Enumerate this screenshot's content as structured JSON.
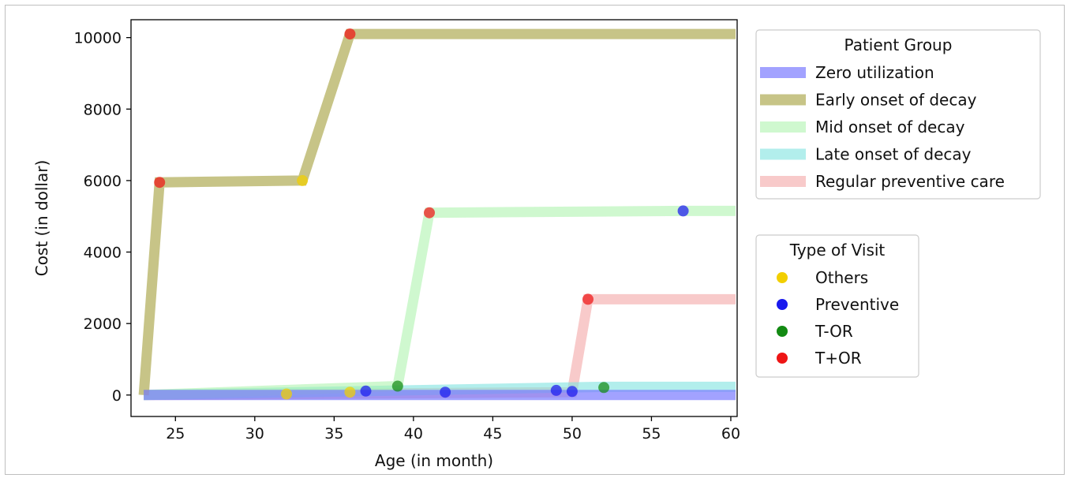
{
  "chart_data": {
    "type": "line",
    "xlabel": "Age (in month)",
    "ylabel": "Cost (in dollar)",
    "xlim": [
      22.2,
      60.4
    ],
    "ylim": [
      -600,
      10500
    ],
    "xticks": [
      25,
      30,
      35,
      40,
      45,
      50,
      55,
      60
    ],
    "yticks": [
      0,
      2000,
      4000,
      6000,
      8000,
      10000
    ],
    "grid": false,
    "series": [
      {
        "name": "Zero utilization",
        "color": "#7b7bff",
        "opacity": 0.7,
        "x": [
          23,
          60.3
        ],
        "y": [
          0,
          0
        ]
      },
      {
        "name": "Early onset of decay",
        "color": "#b9b569",
        "opacity": 0.8,
        "x": [
          23,
          24,
          33,
          36,
          60.3
        ],
        "y": [
          0,
          5950,
          6000,
          10100,
          10100
        ]
      },
      {
        "name": "Mid onset of decay",
        "color": "#a8f2a8",
        "opacity": 0.55,
        "x": [
          23,
          39,
          41,
          57,
          60.3
        ],
        "y": [
          0,
          250,
          5100,
          5150,
          5150
        ]
      },
      {
        "name": "Late onset of decay",
        "color": "#7fe3df",
        "opacity": 0.6,
        "x": [
          23,
          52,
          60.3
        ],
        "y": [
          0,
          230,
          230
        ]
      },
      {
        "name": "Regular preventive care",
        "color": "#f4a6a6",
        "opacity": 0.6,
        "x": [
          23,
          50,
          51,
          60.3
        ],
        "y": [
          0,
          80,
          2680,
          2680
        ]
      }
    ],
    "visits": [
      {
        "x": 24,
        "y": 5950,
        "type": "T+OR"
      },
      {
        "x": 33,
        "y": 6000,
        "type": "Others"
      },
      {
        "x": 36,
        "y": 10100,
        "type": "T+OR"
      },
      {
        "x": 41,
        "y": 5100,
        "type": "T+OR"
      },
      {
        "x": 57,
        "y": 5150,
        "type": "Preventive"
      },
      {
        "x": 51,
        "y": 2680,
        "type": "T+OR"
      },
      {
        "x": 32,
        "y": 30,
        "type": "Others"
      },
      {
        "x": 36,
        "y": 80,
        "type": "Others"
      },
      {
        "x": 37,
        "y": 110,
        "type": "Preventive"
      },
      {
        "x": 39,
        "y": 250,
        "type": "T-OR"
      },
      {
        "x": 42,
        "y": 80,
        "type": "Preventive"
      },
      {
        "x": 49,
        "y": 130,
        "type": "Preventive"
      },
      {
        "x": 50,
        "y": 100,
        "type": "Preventive"
      },
      {
        "x": 52,
        "y": 210,
        "type": "T-OR"
      }
    ],
    "legend_patient_group": {
      "title": "Patient Group",
      "position": "upper-right",
      "entries": [
        "Zero utilization",
        "Early onset of decay",
        "Mid onset of decay",
        "Late onset of decay",
        "Regular preventive care"
      ]
    },
    "legend_visit_type": {
      "title": "Type of Visit",
      "position": "right",
      "entries": [
        {
          "label": "Others",
          "color": "#f2cf00"
        },
        {
          "label": "Preventive",
          "color": "#1a1aee"
        },
        {
          "label": "T-OR",
          "color": "#138a13"
        },
        {
          "label": "T+OR",
          "color": "#ee1515"
        }
      ]
    }
  }
}
